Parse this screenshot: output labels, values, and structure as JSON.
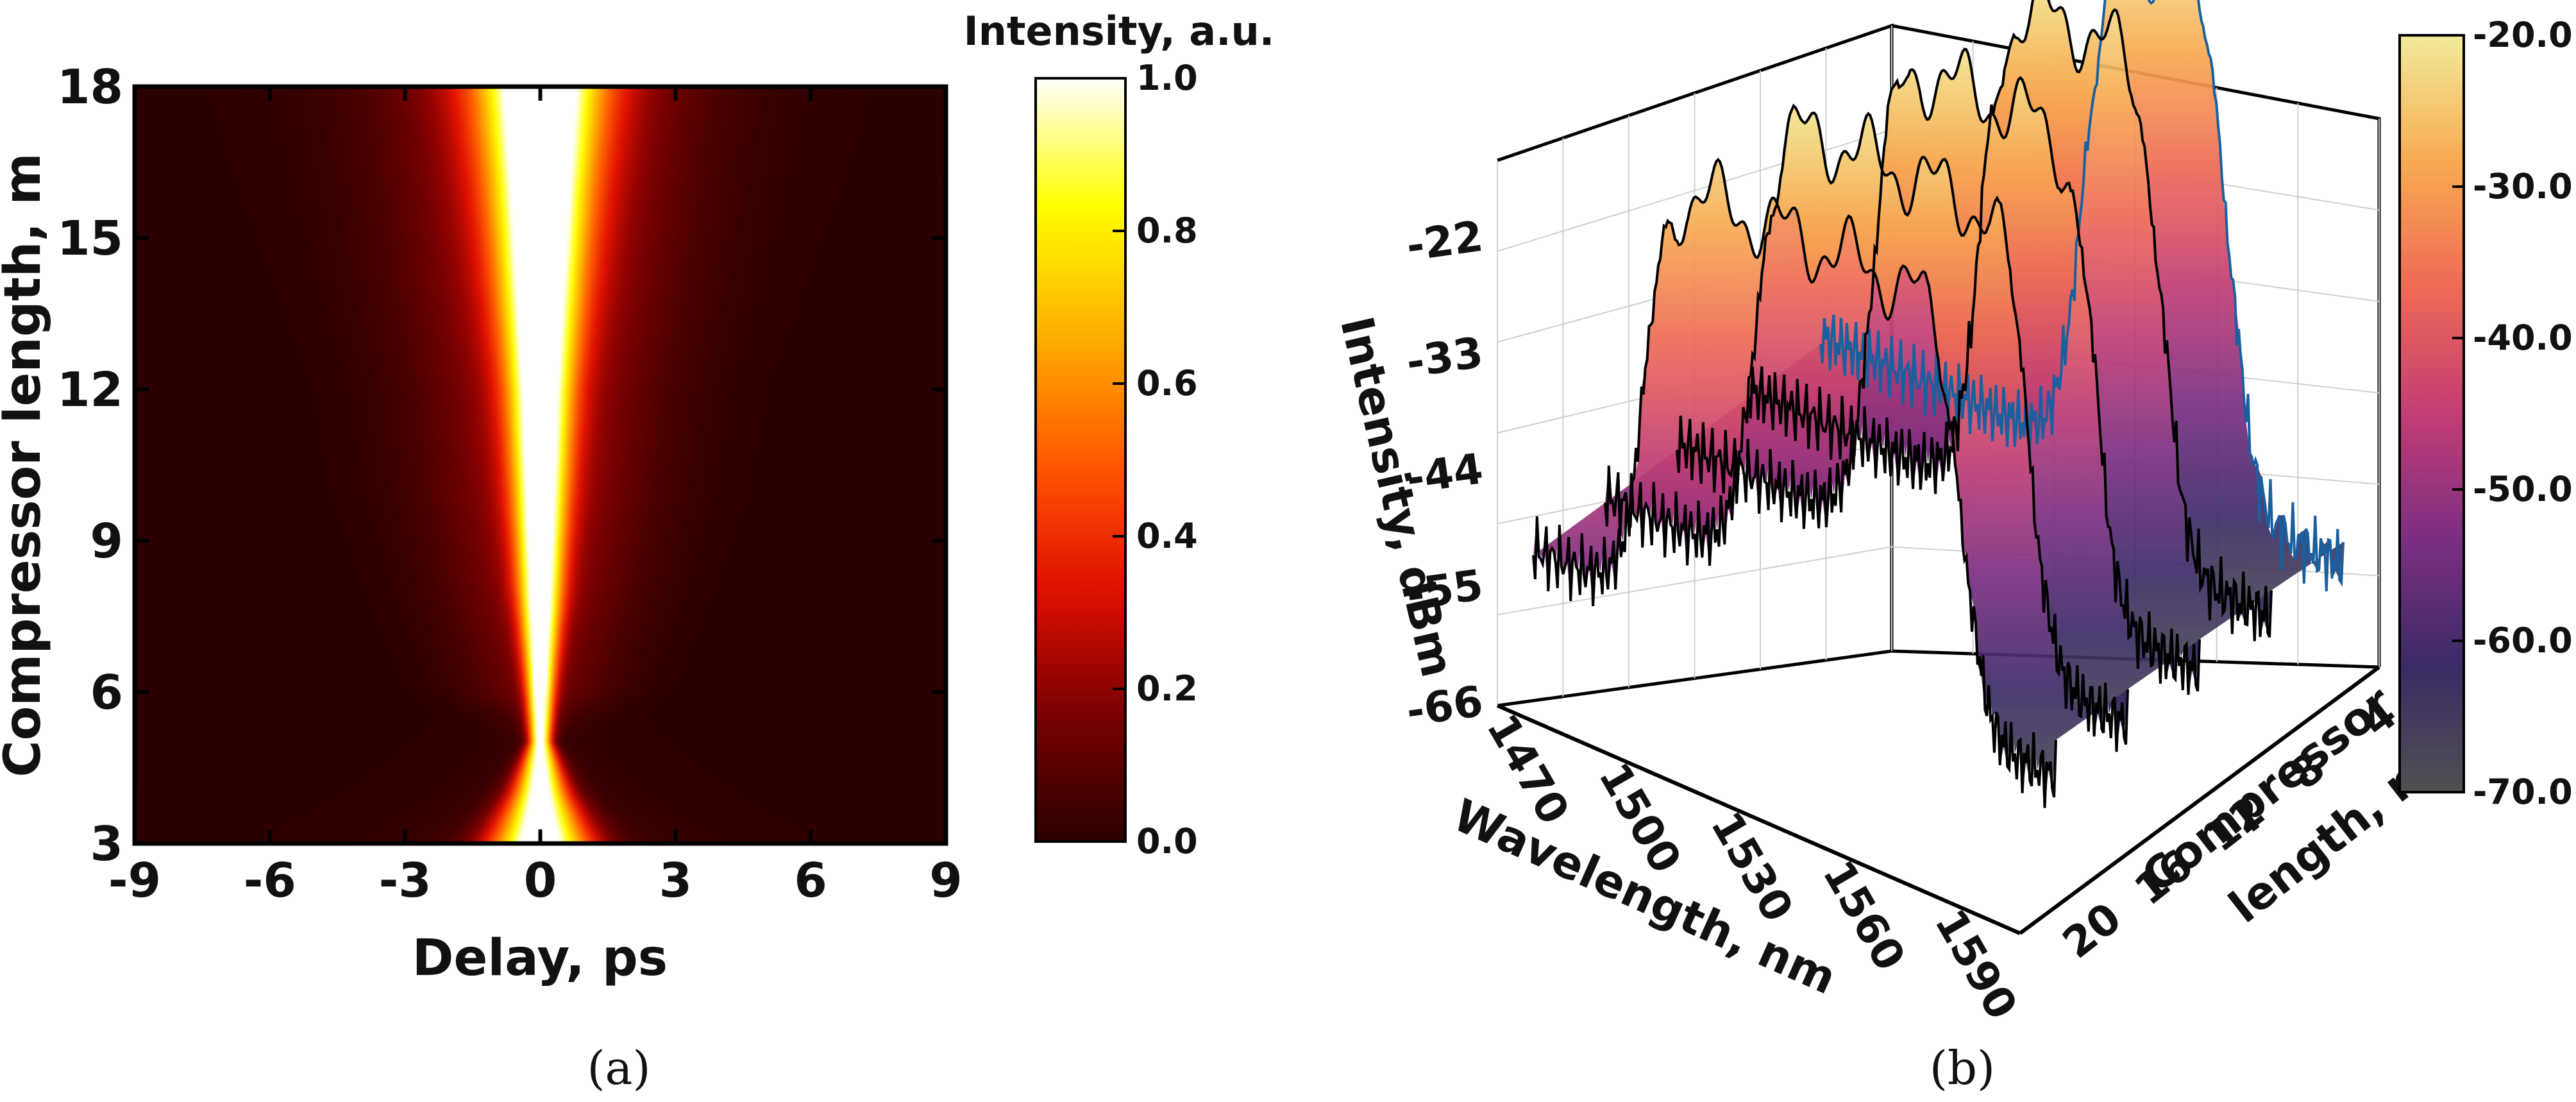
{
  "panels": [
    {
      "caption": "(a)",
      "chart_data": {
        "type": "heatmap",
        "xlabel": "Delay, ps",
        "ylabel": "Compressor length, m",
        "xlim": [
          -9,
          9
        ],
        "ylim": [
          3,
          18
        ],
        "x_ticks": [
          "-9",
          "-6",
          "-3",
          "0",
          "3",
          "6",
          "9"
        ],
        "y_ticks": [
          "3",
          "6",
          "9",
          "12",
          "15",
          "18"
        ],
        "colorbar": {
          "title": "Intensity, a.u.",
          "range": [
            0,
            1
          ],
          "ticks": [
            "0.0",
            "0.2",
            "0.4",
            "0.6",
            "0.8",
            "1.0"
          ],
          "colors": [
            "#2a0000",
            "#7a0000",
            "#e01000",
            "#ff5a00",
            "#ffb000",
            "#ffff00",
            "#ffffff"
          ]
        },
        "profile": {
          "length_m": [
            3,
            4,
            5,
            6,
            8,
            10,
            12,
            14,
            16,
            18
          ],
          "fwhm_ps": [
            1.8,
            1.0,
            0.4,
            0.5,
            0.8,
            1.0,
            1.2,
            1.5,
            1.8,
            2.2
          ],
          "pedestal_width_ps": [
            2.0,
            1.3,
            0.6,
            2.2,
            2.8,
            3.2,
            3.4,
            3.8,
            4.0,
            4.3
          ],
          "pedestal_level": [
            0.1,
            0.06,
            0.03,
            0.14,
            0.2,
            0.23,
            0.25,
            0.27,
            0.29,
            0.3
          ],
          "wing_width_ps": [
            3.0,
            2.5,
            2.0,
            1.6,
            2.0,
            2.3,
            2.5,
            2.8,
            3.2,
            3.6
          ],
          "wing_level": [
            0.06,
            0.04,
            0.03,
            0.02,
            0.02,
            0.03,
            0.03,
            0.04,
            0.05,
            0.05
          ]
        }
      }
    },
    {
      "caption": "(b)",
      "chart_data": {
        "type": "surface",
        "xlabel": "Wavelength, nm",
        "ylabel": "Compressor length, m",
        "zlabel": "Intensity, dBm",
        "x_ticks": [
          "1470",
          "1500",
          "1530",
          "1560",
          "1590"
        ],
        "y_ticks": [
          "4",
          "8",
          "12",
          "16",
          "20"
        ],
        "z_ticks": [
          "-66",
          "-55",
          "-44",
          "-33",
          "-22"
        ],
        "xlim": [
          1460,
          1600
        ],
        "ylim": [
          2,
          22
        ],
        "zlim": [
          -70,
          -18
        ],
        "colorbar": {
          "range": [
            -70,
            -20
          ],
          "ticks": [
            "-70.0",
            "-60.0",
            "-50.0",
            "-40.0",
            "-30.0",
            "-20.0"
          ],
          "colors": [
            "#505050",
            "#3b2b66",
            "#7b2e82",
            "#c23d74",
            "#ee6a55",
            "#f8ab52",
            "#f2ea9c"
          ]
        },
        "spectra": [
          {
            "length_m": 4,
            "color": "#1b5f9e",
            "lambda_left_nm": 1530,
            "lambda_right_nm": 1570,
            "peak_dbm": -20
          },
          {
            "length_m": 8,
            "color": "#000000",
            "lambda_left_nm": 1522,
            "lambda_right_nm": 1571,
            "peak_dbm": -21
          },
          {
            "length_m": 12,
            "color": "#000000",
            "lambda_left_nm": 1512,
            "lambda_right_nm": 1572,
            "peak_dbm": -23
          },
          {
            "length_m": 16,
            "color": "#000000",
            "lambda_left_nm": 1500,
            "lambda_right_nm": 1574,
            "peak_dbm": -25
          },
          {
            "length_m": 20,
            "color": "#000000",
            "lambda_left_nm": 1490,
            "lambda_right_nm": 1575,
            "peak_dbm": -27
          }
        ],
        "noise_floor_dbm": -60
      }
    }
  ]
}
